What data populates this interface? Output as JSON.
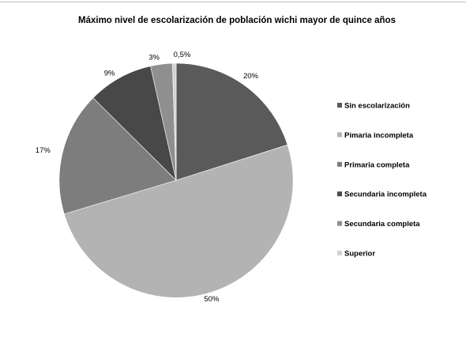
{
  "chart_data": {
    "type": "pie",
    "title": "Máximo nivel de escolarización de población wichi mayor de quince años",
    "legend_position": "right",
    "slices": [
      {
        "name": "Sin escolarización",
        "value": 20,
        "label": "20%",
        "color": "#5a5a5a"
      },
      {
        "name": "Pimaria incompleta",
        "value": 50,
        "label": "50%",
        "color": "#b3b3b3"
      },
      {
        "name": "Primaria completa",
        "value": 17,
        "label": "17%",
        "color": "#7d7d7d"
      },
      {
        "name": "Secundaria incompleta",
        "value": 9,
        "label": "9%",
        "color": "#484848"
      },
      {
        "name": "Secundaria completa",
        "value": 3,
        "label": "3%",
        "color": "#8f8f8f"
      },
      {
        "name": "Superior",
        "value": 0.5,
        "label": "0,5%",
        "color": "#d2d2d2"
      }
    ]
  }
}
